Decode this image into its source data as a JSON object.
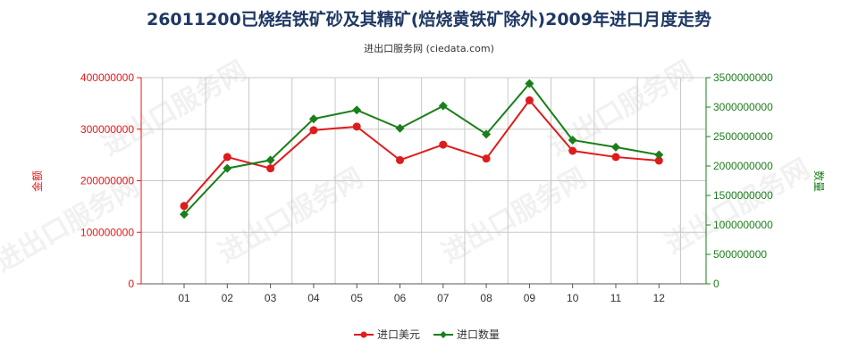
{
  "header": {
    "title": "26011200已烧结铁矿砂及其精矿(焙烧黄铁矿除外)2009年进口月度走势",
    "subtitle": "进出口服务网 (ciedata.com)"
  },
  "watermark": "进出口服务网",
  "colors": {
    "series_usd": "#e01b1b",
    "series_qty": "#1a7f1a",
    "grid": "#c8c8c8",
    "title": "#1f3864"
  },
  "chart_data": {
    "type": "line",
    "title": "26011200已烧结铁矿砂及其精矿(焙烧黄铁矿除外)2009年进口月度走势",
    "categories": [
      "01",
      "02",
      "03",
      "04",
      "05",
      "06",
      "07",
      "08",
      "09",
      "10",
      "11",
      "12"
    ],
    "y_left": {
      "label": "金额",
      "range": [
        0,
        400000000
      ],
      "ticks": [
        "0",
        "100000000",
        "200000000",
        "300000000",
        "400000000"
      ]
    },
    "y_right": {
      "label": "数量",
      "range": [
        0,
        3500000000
      ],
      "ticks": [
        "0",
        "500000000",
        "1000000000",
        "1500000000",
        "2000000000",
        "2500000000",
        "3000000000",
        "3500000000"
      ]
    },
    "grid": true,
    "legend_position": "bottom-center",
    "series": [
      {
        "name": "进口美元",
        "axis": "left",
        "values": [
          151000000,
          246000000,
          224000000,
          298000000,
          305000000,
          240000000,
          270000000,
          243000000,
          356000000,
          258000000,
          246000000,
          239000000
        ]
      },
      {
        "name": "进口数量",
        "axis": "right",
        "values": [
          1180000000,
          1960000000,
          2100000000,
          2800000000,
          2950000000,
          2640000000,
          3020000000,
          2540000000,
          3400000000,
          2440000000,
          2320000000,
          2190000000
        ]
      }
    ]
  }
}
